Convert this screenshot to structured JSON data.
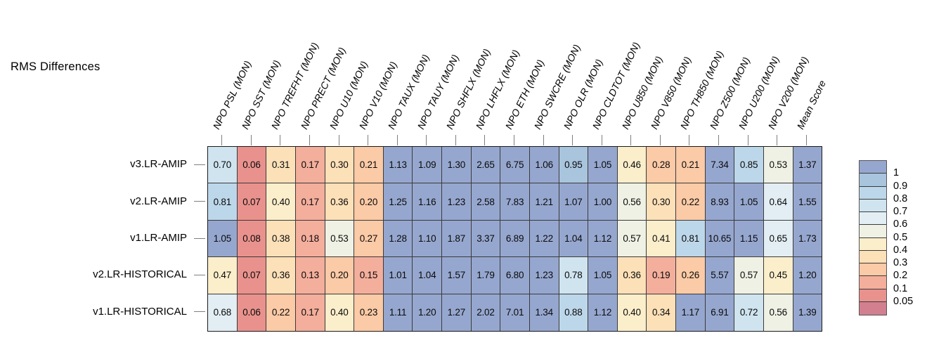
{
  "chart_data": {
    "type": "heatmap",
    "title": "RMS Differences",
    "columns": [
      "NPO PSL (MON)",
      "NPO SST (MON)",
      "NPO TREFHT (MON)",
      "NPO PRECT (MON)",
      "NPO U10 (MON)",
      "NPO V10 (MON)",
      "NPO TAUX (MON)",
      "NPO TAUY (MON)",
      "NPO SHFLX (MON)",
      "NPO LHFLX (MON)",
      "NPO ETH (MON)",
      "NPO SWCRE (MON)",
      "NPO OLR (MON)",
      "NPO CLDTOT (MON)",
      "NPO U850 (MON)",
      "NPO V850 (MON)",
      "NPO TH850 (MON)",
      "NPO Z500 (MON)",
      "NPO U200 (MON)",
      "NPO V200 (MON)",
      "Mean Score"
    ],
    "rows": [
      "v3.LR-AMIP",
      "v2.LR-AMIP",
      "v1.LR-AMIP",
      "v2.LR-HISTORICAL",
      "v1.LR-HISTORICAL"
    ],
    "values": [
      [
        "0.70",
        "0.06",
        "0.31",
        "0.17",
        "0.30",
        "0.21",
        "1.13",
        "1.09",
        "1.30",
        "2.65",
        "6.75",
        "1.06",
        "0.95",
        "1.05",
        "0.46",
        "0.28",
        "0.21",
        "7.34",
        "0.85",
        "0.53",
        "1.37"
      ],
      [
        "0.81",
        "0.07",
        "0.40",
        "0.17",
        "0.36",
        "0.20",
        "1.25",
        "1.16",
        "1.23",
        "2.58",
        "7.83",
        "1.21",
        "1.07",
        "1.00",
        "0.56",
        "0.30",
        "0.22",
        "8.93",
        "1.05",
        "0.64",
        "1.55"
      ],
      [
        "1.05",
        "0.08",
        "0.38",
        "0.18",
        "0.53",
        "0.27",
        "1.28",
        "1.10",
        "1.87",
        "3.37",
        "6.89",
        "1.22",
        "1.04",
        "1.12",
        "0.57",
        "0.41",
        "0.81",
        "10.65",
        "1.15",
        "0.65",
        "1.73"
      ],
      [
        "0.47",
        "0.07",
        "0.36",
        "0.13",
        "0.20",
        "0.15",
        "1.01",
        "1.04",
        "1.57",
        "1.79",
        "6.80",
        "1.23",
        "0.78",
        "1.05",
        "0.36",
        "0.19",
        "0.26",
        "5.57",
        "0.57",
        "0.45",
        "1.20"
      ],
      [
        "0.68",
        "0.06",
        "0.22",
        "0.17",
        "0.40",
        "0.23",
        "1.11",
        "1.20",
        "1.27",
        "2.02",
        "7.01",
        "1.34",
        "0.88",
        "1.12",
        "0.40",
        "0.34",
        "1.17",
        "6.91",
        "0.72",
        "0.56",
        "1.39"
      ]
    ],
    "legend": {
      "tick_labels": [
        "1",
        "0.9",
        "0.8",
        "0.7",
        "0.6",
        "0.5",
        "0.4",
        "0.3",
        "0.2",
        "0.1",
        "0.05"
      ],
      "thresholds": [
        1,
        0.9,
        0.8,
        0.7,
        0.6,
        0.5,
        0.4,
        0.3,
        0.2,
        0.1,
        0.05
      ],
      "band_colors": [
        "#96a7cf",
        "#a9c4dd",
        "#bdd7ea",
        "#cfe4ef",
        "#e2eef3",
        "#eff1e4",
        "#fbeecb",
        "#fce0b8",
        "#fbcaa6",
        "#f4ae9c",
        "#e9928d",
        "#d2808f"
      ],
      "position": "right"
    },
    "grid": "on",
    "cell_text_shown": true
  }
}
